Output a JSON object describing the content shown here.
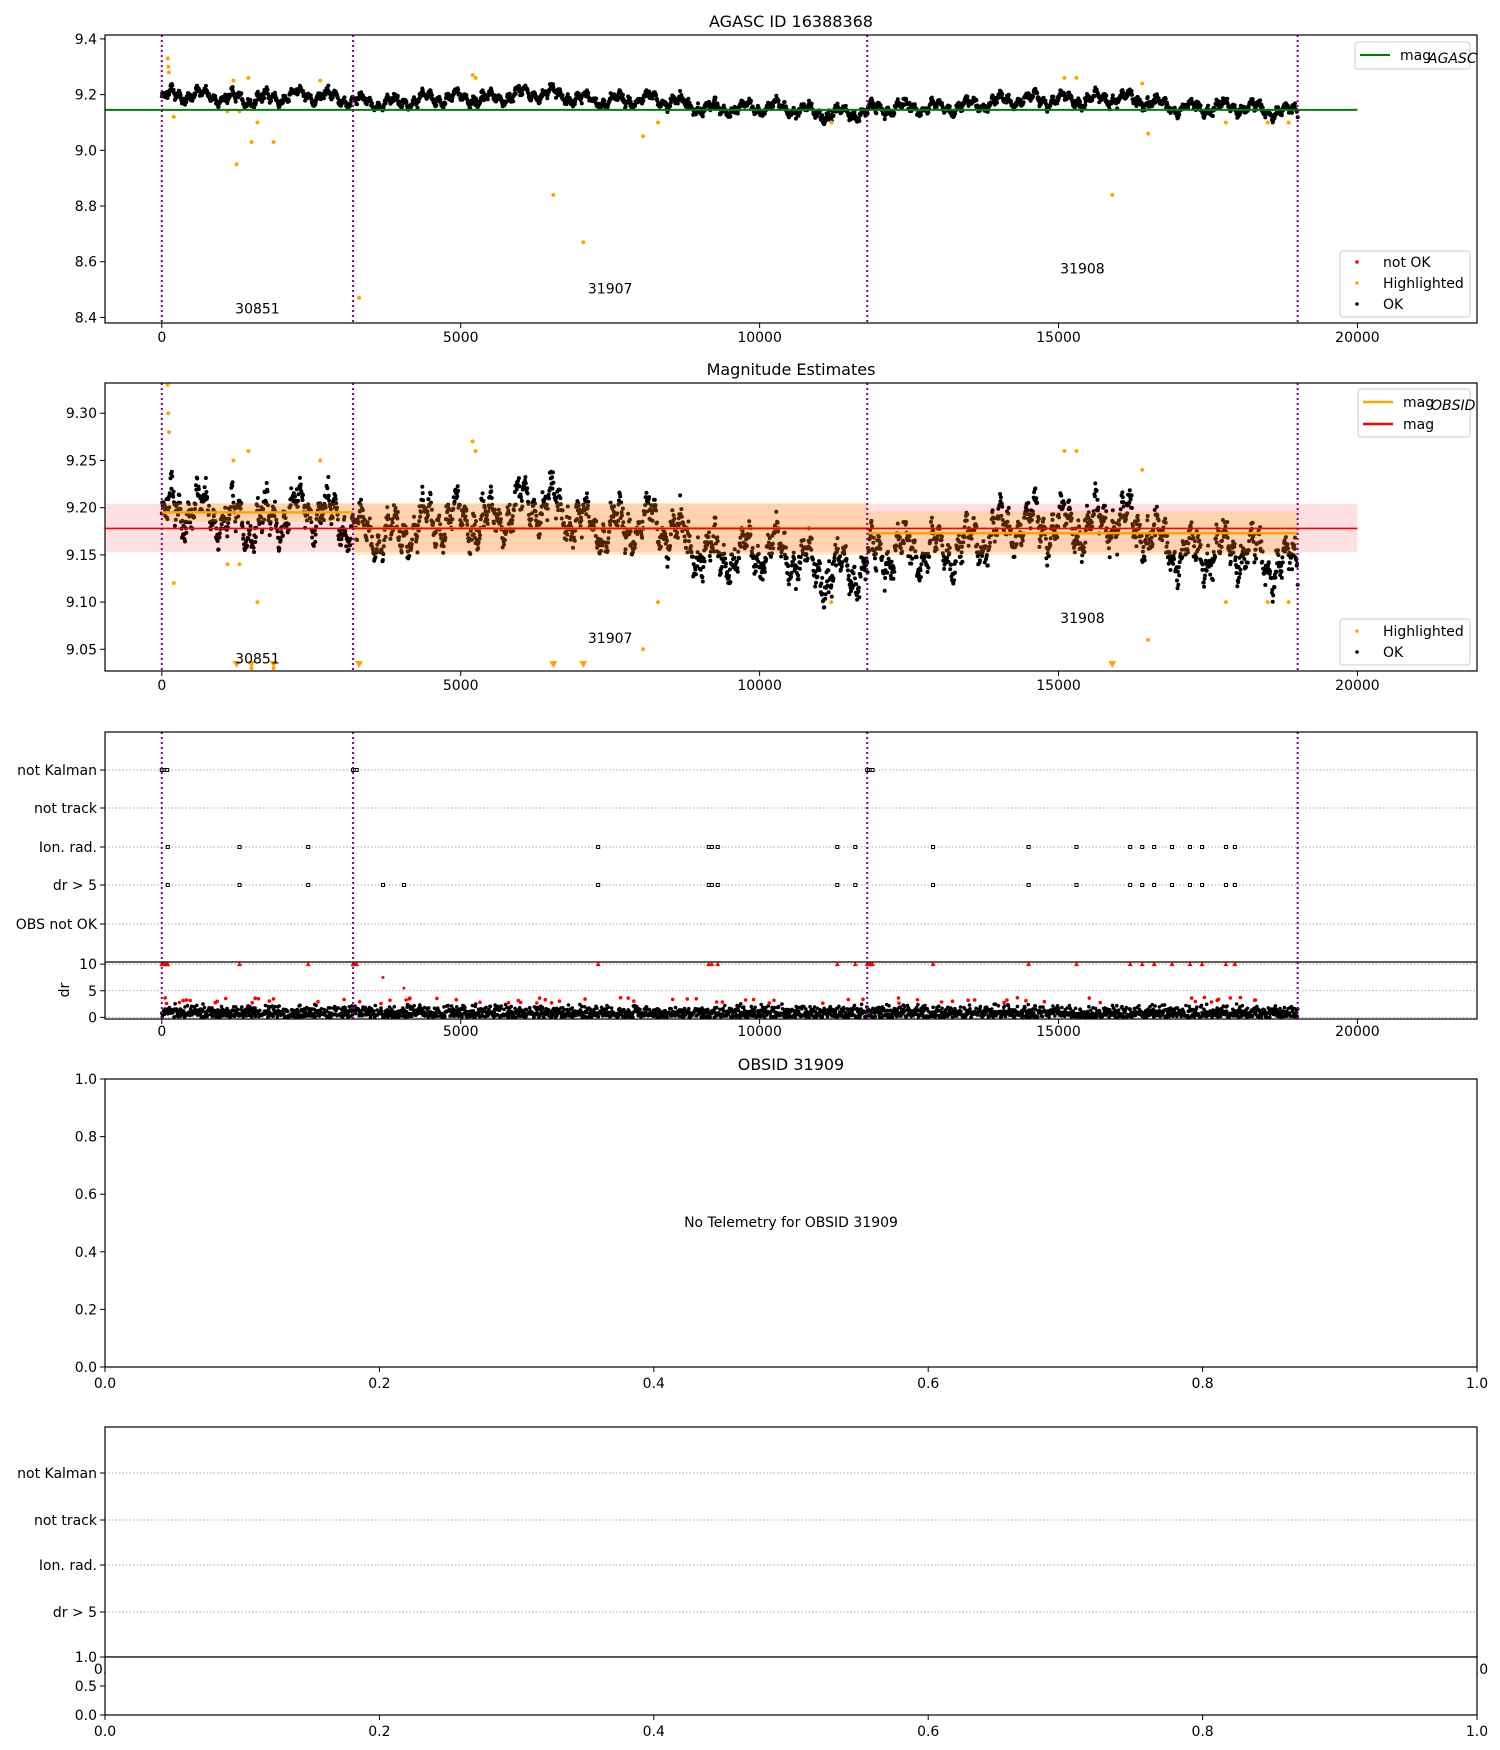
{
  "chart_data": [
    {
      "type": "scatter",
      "title": "AGASC ID 16388368",
      "xlim": [
        -950,
        22000
      ],
      "ylim": [
        8.38,
        9.414
      ],
      "xticks": [
        0,
        5000,
        10000,
        15000,
        20000
      ],
      "xticklabels": [
        "0",
        "5000",
        "10000",
        "15000",
        "20000"
      ],
      "yticks": [
        8.4,
        8.6,
        8.8,
        9.0,
        9.2,
        9.4
      ],
      "yticklabels": [
        "8.4",
        "8.6",
        "8.8",
        "9.0",
        "9.2",
        "9.4"
      ],
      "obsid_boundaries": [
        0,
        3200,
        11800,
        19000
      ],
      "obsid_labels": [
        {
          "text": "30851",
          "x": 1600,
          "y": 8.432
        },
        {
          "text": "31907",
          "x": 7500,
          "y": 8.504
        },
        {
          "text": "31908",
          "x": 15400,
          "y": 8.575
        }
      ],
      "mag_agasc": 9.145,
      "mag_agasc_xrange": [
        -950,
        20000
      ],
      "trend": {
        "x": [
          0,
          1000,
          2000,
          3000,
          4000,
          5000,
          6000,
          7000,
          8000,
          9000,
          10000,
          11000,
          11800,
          12500,
          13000,
          14000,
          15000,
          16000,
          17000,
          18000,
          18500,
          19000
        ],
        "y": [
          9.19,
          9.19,
          9.19,
          9.19,
          9.17,
          9.19,
          9.2,
          9.19,
          9.18,
          9.16,
          9.15,
          9.14,
          9.14,
          9.15,
          9.16,
          9.17,
          9.19,
          9.18,
          9.16,
          9.15,
          9.14,
          9.15
        ]
      },
      "scatter_spread": 0.03,
      "highlighted": [
        [
          100,
          9.33
        ],
        [
          110,
          9.3
        ],
        [
          120,
          9.28
        ],
        [
          200,
          9.12
        ],
        [
          1100,
          9.14
        ],
        [
          1250,
          8.95
        ],
        [
          1300,
          9.14
        ],
        [
          1500,
          9.03
        ],
        [
          1600,
          9.1
        ],
        [
          1870,
          9.03
        ],
        [
          1200,
          9.25
        ],
        [
          1450,
          9.26
        ],
        [
          2650,
          9.25
        ],
        [
          3300,
          8.47
        ],
        [
          5200,
          9.27
        ],
        [
          5250,
          9.26
        ],
        [
          6550,
          8.84
        ],
        [
          7050,
          8.67
        ],
        [
          8050,
          9.05
        ],
        [
          8300,
          9.1
        ],
        [
          11200,
          9.1
        ],
        [
          15100,
          9.26
        ],
        [
          15300,
          9.26
        ],
        [
          15900,
          8.84
        ],
        [
          16400,
          9.24
        ],
        [
          16500,
          9.06
        ],
        [
          17800,
          9.1
        ],
        [
          18500,
          9.1
        ],
        [
          18850,
          9.1
        ]
      ],
      "legend_line": {
        "label": "mag",
        "sub": "AGASC",
        "color": "#008000"
      },
      "legend_points": [
        {
          "label": "not OK",
          "color": "#ff0000"
        },
        {
          "label": "Highlighted",
          "color": "#ffa500"
        },
        {
          "label": "OK",
          "color": "#000000"
        }
      ]
    },
    {
      "type": "scatter",
      "title": "Magnitude Estimates",
      "xlim": [
        -950,
        22000
      ],
      "ylim": [
        9.027,
        9.332
      ],
      "xticks": [
        0,
        5000,
        10000,
        15000,
        20000
      ],
      "xticklabels": [
        "0",
        "5000",
        "10000",
        "15000",
        "20000"
      ],
      "yticks": [
        9.05,
        9.1,
        9.15,
        9.2,
        9.25,
        9.3
      ],
      "yticklabels": [
        "9.05",
        "9.10",
        "9.15",
        "9.20",
        "9.25",
        "9.30"
      ],
      "obsid_labels": [
        {
          "text": "30851",
          "x": 1600,
          "y": 9.04
        },
        {
          "text": "31907",
          "x": 7500,
          "y": 9.062
        },
        {
          "text": "31908",
          "x": 15400,
          "y": 9.083
        }
      ],
      "mag": 9.178,
      "mag_band": [
        9.153,
        9.204
      ],
      "mag_xrange": [
        -950,
        20000
      ],
      "mag_obsid": [
        {
          "obsid": "30851",
          "x0": 0,
          "x1": 3200,
          "mag": 9.195,
          "band": [
            9.185,
            9.205
          ]
        },
        {
          "obsid": "31907",
          "x0": 3200,
          "x1": 11800,
          "mag": 9.178,
          "band": [
            9.15,
            9.205
          ]
        },
        {
          "obsid": "31908",
          "x0": 11800,
          "x1": 19000,
          "mag": 9.173,
          "band": [
            9.15,
            9.196
          ]
        }
      ],
      "out_of_range_low_x": [
        1250,
        1500,
        1870,
        3300,
        6550,
        7050,
        15900
      ],
      "legend_lines": [
        {
          "label": "mag",
          "sub": "OBSID",
          "color": "#ffa500"
        },
        {
          "label": "mag",
          "sub": "",
          "color": "#ff0000"
        }
      ],
      "legend_points": [
        {
          "label": "Highlighted",
          "color": "#ffa500"
        },
        {
          "label": "OK",
          "color": "#000000"
        }
      ]
    },
    {
      "type": "scatter",
      "title": "",
      "xlim": [
        -950,
        22000
      ],
      "xticks": [
        0,
        5000,
        10000,
        15000,
        20000
      ],
      "xticklabels": [
        "0",
        "5000",
        "10000",
        "15000",
        "20000"
      ],
      "flag_labels": [
        "not Kalman",
        "not track",
        "Ion. rad.",
        "dr > 5",
        "OBS not OK"
      ],
      "not_kalman_x": [
        0,
        30,
        60,
        90,
        3200,
        3230,
        3260,
        11800,
        11830,
        11860,
        11890
      ],
      "ion_rad_x": [
        100,
        1300,
        2450,
        7300,
        9150,
        9200,
        9300,
        11300,
        11600,
        12900,
        14500,
        15300,
        16200,
        16400,
        16600,
        16900,
        17200,
        17400,
        17800,
        17950
      ],
      "dr_gt5_x": [
        100,
        1300,
        2450,
        3700,
        4050,
        7300,
        9150,
        9200,
        9300,
        11300,
        11600,
        12900,
        14500,
        15300,
        16200,
        16400,
        16600,
        16900,
        17200,
        17400,
        17800,
        17950
      ],
      "dr_ylabel": "dr",
      "dr_ylim": [
        -0.3,
        10.4
      ],
      "dr_yticks": [
        0,
        5,
        10
      ],
      "dr_yticklabels": [
        "0",
        "5",
        "10"
      ],
      "dr_spread": [
        0,
        2.6
      ],
      "dr_red_outliers": [
        [
          3700,
          7.5
        ],
        [
          4050,
          5.5
        ]
      ]
    },
    {
      "type": "scatter",
      "title": "OBSID 31909",
      "annotation": "No Telemetry for OBSID 31909",
      "xlim": [
        0,
        1
      ],
      "ylim": [
        0,
        1
      ],
      "xticklabels": [
        "0.0",
        "0.2",
        "0.4",
        "0.6",
        "0.8",
        "1.0"
      ],
      "yticklabels": [
        "0.0",
        "0.2",
        "0.4",
        "0.6",
        "0.8",
        "1.0"
      ]
    },
    {
      "type": "scatter",
      "title": "",
      "flag_labels": [
        "not Kalman",
        "not track",
        "Ion. rad.",
        "dr > 5"
      ],
      "hidden_xticklabels": [
        "0.0",
        "1.0"
      ],
      "sub_yticklabels": [
        "0.0",
        "0.5",
        "1.0"
      ],
      "xticklabels": [
        "0.0",
        "0.2",
        "0.4",
        "0.6",
        "0.8",
        "1.0"
      ]
    }
  ]
}
